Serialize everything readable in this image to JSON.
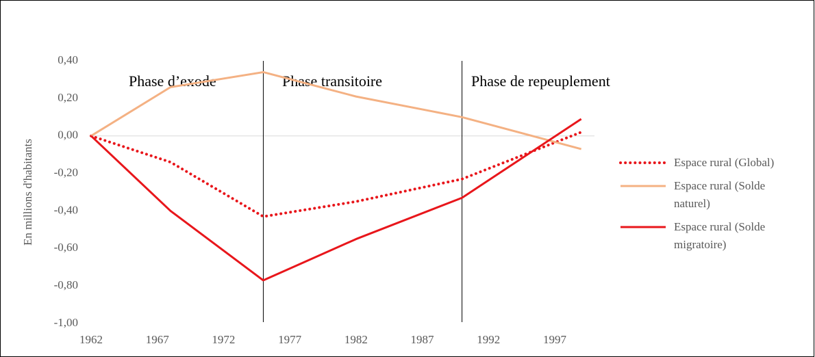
{
  "chart_data": {
    "type": "line",
    "y_label": "En millions d'habitants",
    "x": [
      1962,
      1968,
      1975,
      1982,
      1990,
      1999
    ],
    "xlim": [
      1962,
      2000
    ],
    "xticks": [
      1962,
      1967,
      1972,
      1977,
      1982,
      1987,
      1992,
      1997
    ],
    "ylim": [
      -1,
      0.4
    ],
    "yticks": [
      {
        "value": 0.4,
        "label": "0,40"
      },
      {
        "value": 0.2,
        "label": "0,20"
      },
      {
        "value": 0,
        "label": "0,00"
      },
      {
        "value": -0.2,
        "label": "-0,20"
      },
      {
        "value": -0.4,
        "label": "-0,40"
      },
      {
        "value": -0.6,
        "label": "-0,60"
      },
      {
        "value": -0.8,
        "label": "-0,80"
      },
      {
        "value": -1,
        "label": "-1,00"
      }
    ],
    "grid": false,
    "legend": "right",
    "annotations": [
      "Phase d’exode",
      "Phase transitoire",
      "Phase de repeuplement"
    ],
    "phase_boundaries": [
      1975,
      1990
    ],
    "series": [
      {
        "name": "Espace rural (Global)",
        "color": "#e8161b",
        "style": "dotted",
        "values": [
          0,
          -0.14,
          -0.43,
          -0.35,
          -0.23,
          0.02
        ]
      },
      {
        "name": "Espace rural (Solde naturel)",
        "color": "#f4b183",
        "style": "solid",
        "values": [
          0,
          0.26,
          0.34,
          0.21,
          0.1,
          -0.07
        ]
      },
      {
        "name": "Espace rural (Solde migratoire)",
        "color": "#e8161b",
        "style": "solid",
        "values": [
          0,
          -0.4,
          -0.77,
          -0.55,
          -0.33,
          0.09
        ]
      }
    ]
  }
}
